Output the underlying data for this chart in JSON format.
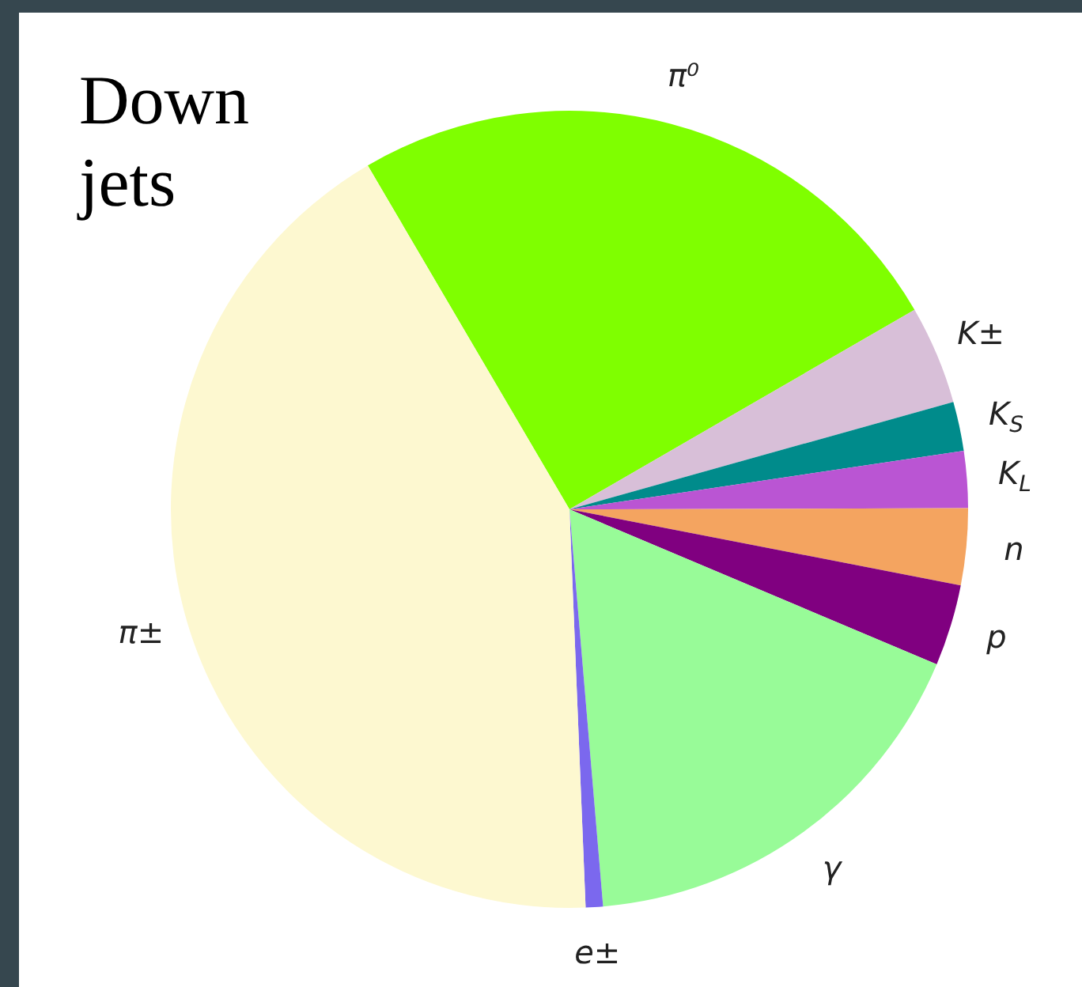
{
  "chart_data": {
    "type": "pie",
    "title": "Down jets",
    "categories": [
      "π⁰",
      "K±",
      "K$_{S}$",
      "K$_{L}$",
      "n",
      "p",
      "γ",
      "e±",
      "π±"
    ],
    "values": [
      25.1,
      4.0,
      2.0,
      2.3,
      3.1,
      3.3,
      17.3,
      0.7,
      42.2
    ],
    "colors": [
      "#7fff00",
      "#d8bfd8",
      "#008b8b",
      "#ba55d3",
      "#f4a460",
      "#800080",
      "#98fb98",
      "#7b68ee",
      "#fdf8d0"
    ],
    "legend": false
  }
}
